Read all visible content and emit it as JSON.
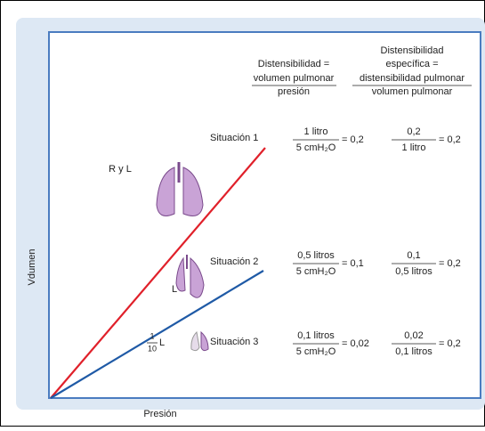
{
  "axes": {
    "y_label": "Vdumen",
    "x_label": "Presión"
  },
  "headers": [
    {
      "lines": [
        "Distensibilidad =",
        "volumen pulmonar",
        "presión"
      ]
    },
    {
      "lines": [
        "Distensibilidad",
        "específica =",
        "distensibilidad pulmonar",
        "volumen pulmonar"
      ]
    }
  ],
  "rows": [
    {
      "label": "Situación 1",
      "compliance": {
        "num": "1 litro",
        "den": "5 cmH₂O",
        "result": "= 0,2"
      },
      "specific": {
        "num": "0,2",
        "den": "1 litro",
        "result": "= 0,2"
      }
    },
    {
      "label": "Situación 2",
      "compliance": {
        "num": "0,5 litros",
        "den": "5 cmH₂O",
        "result": "= 0,1"
      },
      "specific": {
        "num": "0,1",
        "den": "0,5 litros",
        "result": "= 0,2"
      }
    },
    {
      "label": "Situación 3",
      "compliance": {
        "num": "0,1 litros",
        "den": "5 cmH₂O",
        "result": "= 0,02"
      },
      "specific": {
        "num": "0,02",
        "den": "0,1 litros",
        "result": "= 0,2"
      }
    }
  ],
  "lung_labels": [
    "R y L",
    "L"
  ],
  "fraction_label": {
    "num": "1",
    "den": "10",
    "unit": "L"
  }
}
